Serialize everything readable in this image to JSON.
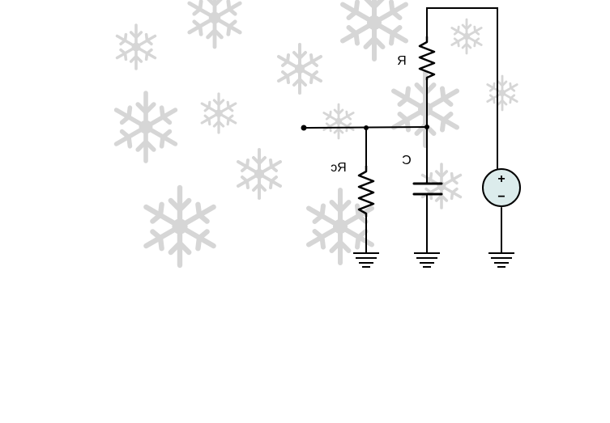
{
  "diagram": {
    "labels": {
      "resistor_top": "R",
      "resistor_left": "Rc",
      "capacitor": "C"
    },
    "source": {
      "plus": "+",
      "minus": "−"
    }
  },
  "colors": {
    "wire": "#000000",
    "snowflake": "#cfcfcf",
    "source_fill": "#dcecec",
    "background": "#ffffff"
  },
  "icons": [
    "snowflake-icon",
    "resistor-icon",
    "capacitor-icon",
    "ground-icon",
    "voltage-source-icon"
  ]
}
